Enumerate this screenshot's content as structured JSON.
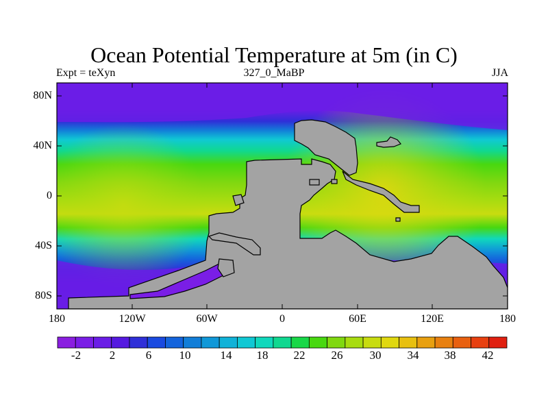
{
  "title": "Ocean Potential Temperature at 5m (in C)",
  "left_string": "Expt = teXyn",
  "center_string": "327_0_MaBP",
  "right_string": "JJA",
  "axes": {
    "lat_labels": [
      "80N",
      "40N",
      "0",
      "40S",
      "80S"
    ],
    "lon_labels": [
      "180",
      "120W",
      "60W",
      "0",
      "60E",
      "120E",
      "180"
    ]
  },
  "colorbar": {
    "labels": [
      "-2",
      "2",
      "6",
      "10",
      "14",
      "18",
      "22",
      "26",
      "30",
      "34",
      "38",
      "42"
    ],
    "colors": [
      "#8a1fe0",
      "#7a1ee6",
      "#6a1de6",
      "#5519e0",
      "#2f2fd8",
      "#1a4ae0",
      "#1464dc",
      "#127ed8",
      "#1098d8",
      "#10b2d8",
      "#10c8d4",
      "#10d8bc",
      "#10d890",
      "#18d848",
      "#48d810",
      "#80d810",
      "#a8dc10",
      "#c8dc10",
      "#e0d810",
      "#e8c010",
      "#e8a010",
      "#e88010",
      "#e86010",
      "#e84010",
      "#e02010"
    ]
  },
  "colors": {
    "land": "#a3a3a3",
    "frame": "#000000"
  }
}
